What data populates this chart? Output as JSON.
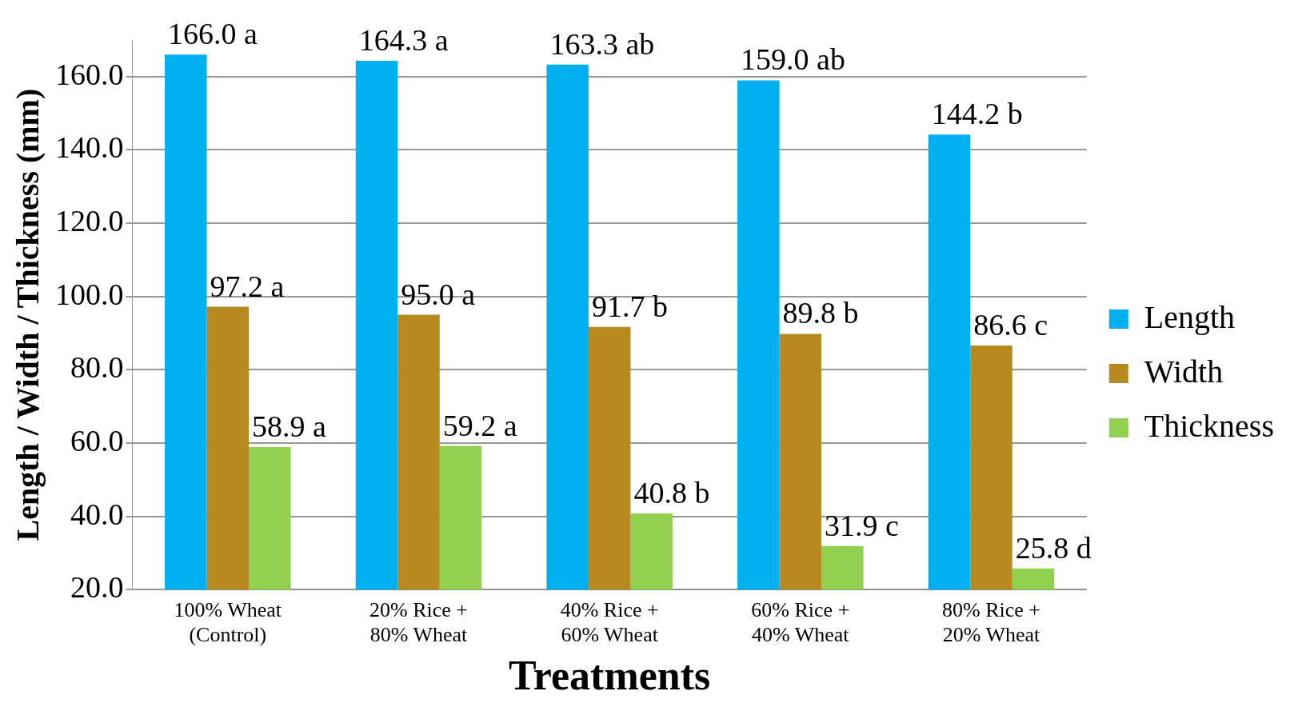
{
  "chart_data": {
    "type": "bar",
    "xlabel": "Treatments",
    "ylabel": "Length / Width / Thickness (mm)",
    "categories": [
      "100% Wheat (Control)",
      "20% Rice + 80% Wheat",
      "40% Rice + 60% Wheat",
      "60% Rice + 40% Wheat",
      "80% Rice + 20% Wheat"
    ],
    "series": [
      {
        "name": "Length",
        "color": "#00b0f0",
        "values": [
          166.0,
          164.3,
          163.3,
          159.0,
          144.2
        ],
        "value_labels": [
          "166.0 a",
          "164.3 a",
          "163.3 ab",
          "159.0 ab",
          "144.2 b"
        ]
      },
      {
        "name": "Width",
        "color": "#b8891f",
        "values": [
          97.2,
          95.0,
          91.7,
          89.8,
          86.6
        ],
        "value_labels": [
          "97.2 a",
          "95.0 a",
          "91.7 b",
          "89.8 b",
          "86.6 c"
        ]
      },
      {
        "name": "Thickness",
        "color": "#92d050",
        "values": [
          58.9,
          59.2,
          40.8,
          31.9,
          25.8
        ],
        "value_labels": [
          "58.9 a",
          "59.2 a",
          "40.8 b",
          "31.9 c",
          "25.8 d"
        ]
      }
    ],
    "ylim": [
      20,
      170
    ],
    "yticks": [
      {
        "value": 20,
        "label": "20.0"
      },
      {
        "value": 40,
        "label": "40.0"
      },
      {
        "value": 60,
        "label": "60.0"
      },
      {
        "value": 80,
        "label": "80.0"
      },
      {
        "value": 100,
        "label": "100.0"
      },
      {
        "value": 120,
        "label": "120.0"
      },
      {
        "value": 140,
        "label": "140.0"
      },
      {
        "value": 160,
        "label": "160.0"
      }
    ],
    "grid": "y",
    "legend": "right"
  }
}
